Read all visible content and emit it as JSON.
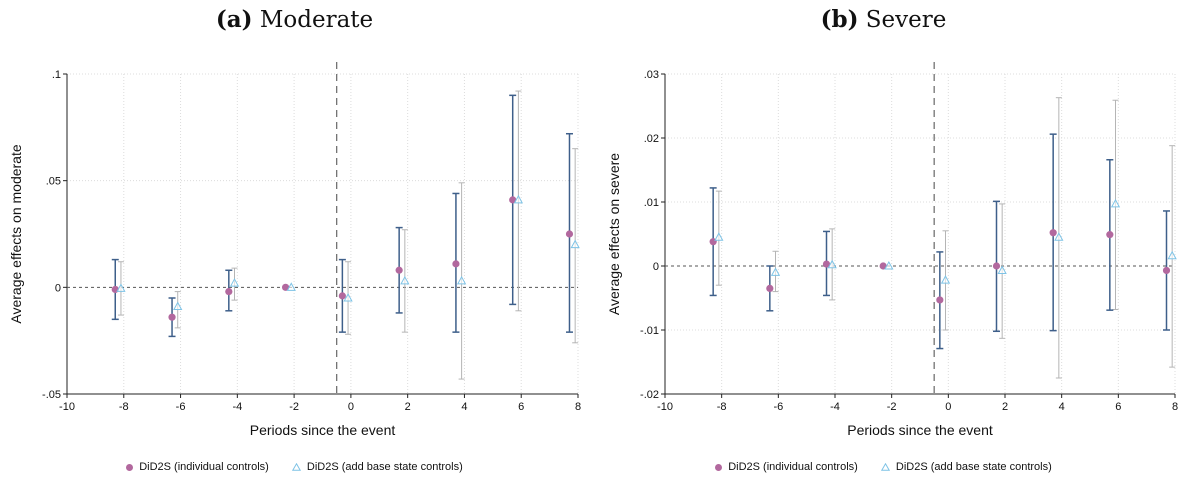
{
  "legend": {
    "series1": "DiD2S (individual controls)",
    "series2": "DiD2S (add base state controls)"
  },
  "colors": {
    "series1": "#b2689e",
    "series1_ci": "#3e5f8a",
    "series2": "#7ec3e6",
    "series2_ci": "#b5b5b5",
    "grid": "#dcdcdc",
    "zero_line": "#555555",
    "event_line": "#666666"
  },
  "panels": [
    {
      "title_bold": "(a)",
      "title_rest": " Moderate"
    },
    {
      "title_bold": "(b)",
      "title_rest": " Severe"
    }
  ],
  "chart_data": [
    {
      "type": "scatter",
      "subtype": "event-study coefficient plot with confidence intervals",
      "xlabel": "Periods since the event",
      "ylabel": "Average effects on moderate",
      "xlim": [
        -10,
        8
      ],
      "ylim": [
        -0.05,
        0.1
      ],
      "xticks": [
        -10,
        -8,
        -6,
        -4,
        -2,
        0,
        2,
        4,
        6,
        8
      ],
      "yticks": [
        -0.05,
        0,
        0.05,
        0.1
      ],
      "ytick_labels": [
        "-.05",
        "0",
        ".05",
        ".1"
      ],
      "event_line_x": -0.5,
      "grid": true,
      "legend_position": "bottom",
      "series": [
        {
          "name": "DiD2S (individual controls)",
          "marker": "circle",
          "x": [
            -8.3,
            -6.3,
            -4.3,
            -2.3,
            -0.3,
            1.7,
            3.7,
            5.7,
            7.7
          ],
          "y": [
            -0.001,
            -0.014,
            -0.002,
            0,
            -0.004,
            0.008,
            0.011,
            0.041,
            0.025
          ],
          "lower": [
            -0.015,
            -0.023,
            -0.011,
            0,
            -0.021,
            -0.012,
            -0.021,
            -0.008,
            -0.021
          ],
          "upper": [
            0.013,
            -0.005,
            0.008,
            0,
            0.013,
            0.028,
            0.044,
            0.09,
            0.072
          ]
        },
        {
          "name": "DiD2S (add base state controls)",
          "marker": "triangle",
          "x": [
            -8.1,
            -6.1,
            -4.1,
            -2.1,
            -0.1,
            1.9,
            3.9,
            5.9,
            7.9
          ],
          "y": [
            -0.0005,
            -0.009,
            0.002,
            0,
            -0.005,
            0.003,
            0.003,
            0.041,
            0.02
          ],
          "lower": [
            -0.013,
            -0.019,
            -0.006,
            0,
            -0.022,
            -0.021,
            -0.043,
            -0.011,
            -0.026
          ],
          "upper": [
            0.012,
            -0.002,
            0.009,
            0,
            0.012,
            0.027,
            0.049,
            0.092,
            0.065
          ]
        }
      ]
    },
    {
      "type": "scatter",
      "subtype": "event-study coefficient plot with confidence intervals",
      "xlabel": "Periods since the event",
      "ylabel": "Average effects on severe",
      "xlim": [
        -10,
        8
      ],
      "ylim": [
        -0.02,
        0.03
      ],
      "xticks": [
        -10,
        -8,
        -6,
        -4,
        -2,
        0,
        2,
        4,
        6,
        8
      ],
      "yticks": [
        -0.02,
        -0.01,
        0,
        0.01,
        0.02,
        0.03
      ],
      "ytick_labels": [
        "-.02",
        "-.01",
        "0",
        ".01",
        ".02",
        ".03"
      ],
      "event_line_x": -0.5,
      "grid": true,
      "legend_position": "bottom",
      "series": [
        {
          "name": "DiD2S (individual controls)",
          "marker": "circle",
          "x": [
            -8.3,
            -6.3,
            -4.3,
            -2.3,
            -0.3,
            1.7,
            3.7,
            5.7,
            7.7
          ],
          "y": [
            0.0038,
            -0.0035,
            0.0003,
            0,
            -0.0053,
            0,
            0.0052,
            0.0049,
            -0.0007
          ],
          "lower": [
            -0.0046,
            -0.007,
            -0.0046,
            0,
            -0.0129,
            -0.0102,
            -0.0101,
            -0.0069,
            -0.01
          ],
          "upper": [
            0.0122,
            0,
            0.0054,
            0,
            0.0022,
            0.0101,
            0.0206,
            0.0166,
            0.0086
          ]
        },
        {
          "name": "DiD2S (add base state controls)",
          "marker": "triangle",
          "x": [
            -8.1,
            -6.1,
            -4.1,
            -2.1,
            -0.1,
            1.9,
            3.9,
            5.9,
            7.9
          ],
          "y": [
            0.0045,
            -0.001,
            0.0002,
            0,
            -0.0022,
            -0.0007,
            0.0045,
            0.0097,
            0.0016
          ],
          "lower": [
            -0.003,
            -0.004,
            -0.0053,
            0,
            -0.01,
            -0.0113,
            -0.0175,
            -0.0068,
            -0.0158
          ],
          "upper": [
            0.0117,
            0.0023,
            0.0058,
            0,
            0.0055,
            0.0097,
            0.0263,
            0.0259,
            0.0188
          ]
        }
      ]
    }
  ]
}
